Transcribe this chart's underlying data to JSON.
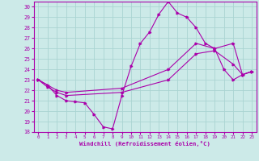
{
  "title": "",
  "xlabel": "Windchill (Refroidissement éolien,°C)",
  "xlim": [
    -0.5,
    23.5
  ],
  "ylim": [
    18,
    30.5
  ],
  "xticks": [
    0,
    1,
    2,
    3,
    4,
    5,
    6,
    7,
    8,
    9,
    10,
    11,
    12,
    13,
    14,
    15,
    16,
    17,
    18,
    19,
    20,
    21,
    22,
    23
  ],
  "yticks": [
    18,
    19,
    20,
    21,
    22,
    23,
    24,
    25,
    26,
    27,
    28,
    29,
    30
  ],
  "bg_color": "#cceae8",
  "grid_color": "#aad4d2",
  "line_color": "#aa00aa",
  "line1_x": [
    0,
    1,
    2,
    3,
    4,
    5,
    6,
    7,
    8,
    9,
    10,
    11,
    12,
    13,
    14,
    15,
    16,
    17,
    18,
    19,
    20,
    21,
    22,
    23
  ],
  "line1_y": [
    23.0,
    22.5,
    21.5,
    21.0,
    20.9,
    20.8,
    19.7,
    18.5,
    18.3,
    21.5,
    24.3,
    26.5,
    27.6,
    29.3,
    30.5,
    29.4,
    29.0,
    28.0,
    26.5,
    26.0,
    24.0,
    23.0,
    23.5,
    23.8
  ],
  "line2_x": [
    0,
    1,
    2,
    3,
    9,
    14,
    17,
    19,
    21,
    22,
    23
  ],
  "line2_y": [
    23.0,
    22.5,
    22.0,
    21.8,
    22.2,
    24.0,
    26.5,
    26.0,
    26.5,
    23.5,
    23.8
  ],
  "line3_x": [
    0,
    1,
    2,
    3,
    9,
    14,
    17,
    19,
    21,
    22,
    23
  ],
  "line3_y": [
    23.0,
    22.3,
    21.8,
    21.5,
    21.8,
    23.0,
    25.5,
    25.8,
    24.5,
    23.5,
    23.8
  ]
}
